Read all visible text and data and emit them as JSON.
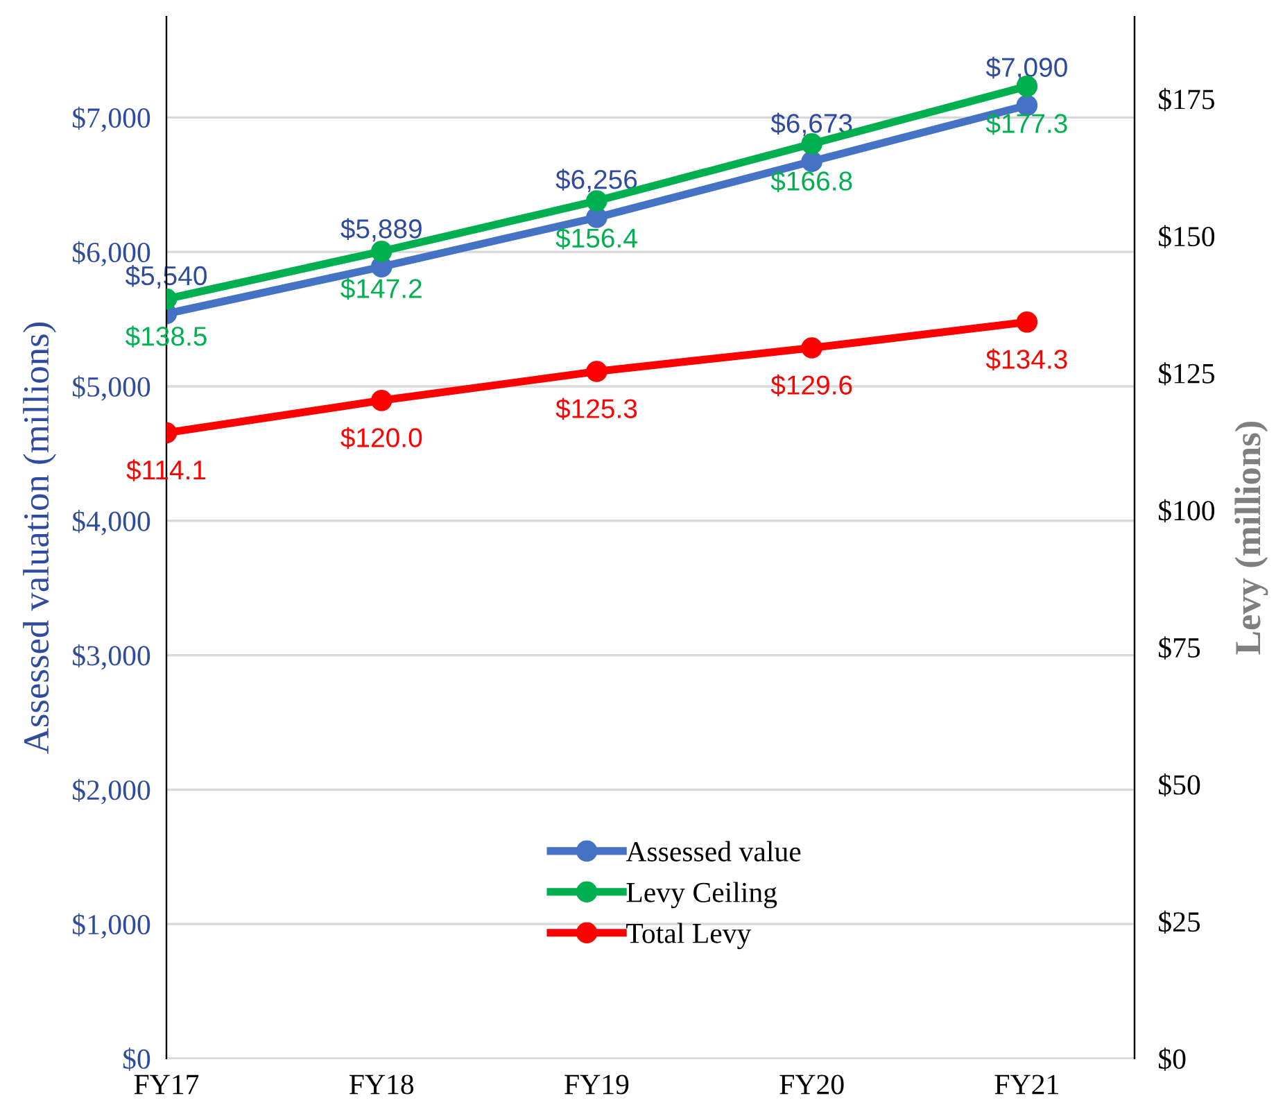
{
  "chart_data": {
    "type": "line",
    "ylabel": "Assessed valuation (millions)",
    "y2label": "Levy (millions)",
    "categories": [
      "FY17",
      "FY18",
      "FY19",
      "FY20",
      "FY21"
    ],
    "series": [
      {
        "name": "Assessed value",
        "color": "#4472c4",
        "values": [
          5540,
          5889,
          6256,
          6673,
          7090
        ],
        "value_labels": [
          "$5,540",
          "$5,889",
          "$6,256",
          "$6,673",
          "$7,090"
        ]
      },
      {
        "name": "Levy Ceiling",
        "color": "#00b050",
        "axis": "y2",
        "values": [
          138.5,
          147.2,
          156.4,
          166.8,
          177.3
        ],
        "value_labels": [
          "$138.5",
          "$147.2",
          "$156.4",
          "$166.8",
          "$177.3"
        ]
      },
      {
        "name": "Total Levy",
        "color": "#ff0000",
        "axis": "y2",
        "values": [
          114.1,
          120.0,
          125.3,
          129.6,
          134.3
        ],
        "value_labels": [
          "$114.1",
          "$120.0",
          "$125.3",
          "$129.6",
          "$134.3"
        ]
      }
    ],
    "ylim": [
      0,
      7750
    ],
    "yticks": [
      {
        "value": 0,
        "label": "$0"
      },
      {
        "value": 1000,
        "label": "$1,000"
      },
      {
        "value": 2000,
        "label": "$2,000"
      },
      {
        "value": 3000,
        "label": "$3,000"
      },
      {
        "value": 4000,
        "label": "$4,000"
      },
      {
        "value": 5000,
        "label": "$5,000"
      },
      {
        "value": 6000,
        "label": "$6,000"
      },
      {
        "value": 7000,
        "label": "$7,000"
      }
    ],
    "y2lim": [
      0,
      190
    ],
    "y2ticks": [
      {
        "value": 0,
        "label": "$0"
      },
      {
        "value": 25,
        "label": "$25"
      },
      {
        "value": 50,
        "label": "$50"
      },
      {
        "value": 75,
        "label": "$75"
      },
      {
        "value": 100,
        "label": "$100"
      },
      {
        "value": 125,
        "label": "$125"
      },
      {
        "value": 150,
        "label": "$150"
      },
      {
        "value": 175,
        "label": "$175"
      }
    ],
    "grid": "y",
    "legend": "bottom",
    "marker": "circle",
    "line_style": "solid"
  }
}
